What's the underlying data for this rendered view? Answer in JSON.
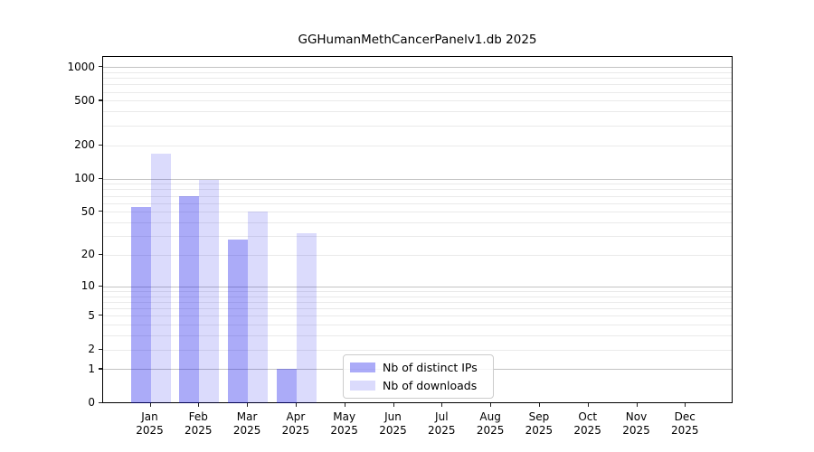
{
  "chart_data": {
    "type": "bar",
    "title": "GGHumanMethCancerPanelv1.db 2025",
    "x_months": [
      "Jan",
      "Feb",
      "Mar",
      "Apr",
      "May",
      "Jun",
      "Jul",
      "Aug",
      "Sep",
      "Oct",
      "Nov",
      "Dec"
    ],
    "x_year": "2025",
    "series": [
      {
        "name": "Nb of distinct IPs",
        "color": "rgba(10,10,235,0.34)",
        "hex_on_white": "#aaaaf7",
        "values": [
          55,
          69,
          28,
          1,
          0,
          0,
          0,
          0,
          0,
          0,
          0,
          0
        ]
      },
      {
        "name": "Nb of downloads",
        "color": "rgba(10,10,235,0.145)",
        "hex_on_white": "#dbdbfb",
        "values": [
          167,
          97,
          50,
          32,
          0,
          0,
          0,
          0,
          0,
          0,
          0,
          0
        ]
      }
    ],
    "yscale": "log10(value+1)",
    "ylim": [
      0,
      1234
    ],
    "y_tick_values": [
      0,
      1,
      2,
      5,
      10,
      20,
      50,
      100,
      200,
      500,
      1000
    ],
    "y_tick_labels": [
      "0",
      "1",
      "2",
      "5",
      "10",
      "20",
      "50",
      "100",
      "200",
      "500",
      "1000"
    ],
    "y_major_gridlines": [
      1,
      10,
      100,
      1000
    ],
    "y_minor_gridlines": [
      2,
      3,
      4,
      5,
      6,
      7,
      8,
      9,
      20,
      30,
      40,
      50,
      60,
      70,
      80,
      90,
      200,
      300,
      400,
      500,
      600,
      700,
      800,
      900
    ],
    "grid": true,
    "legend_position": "inside-bottom-center-left"
  },
  "colors": {
    "major_grid": "#c3c3c3",
    "minor_grid": "#eaeaea",
    "axis": "#000000",
    "background": "#ffffff"
  }
}
